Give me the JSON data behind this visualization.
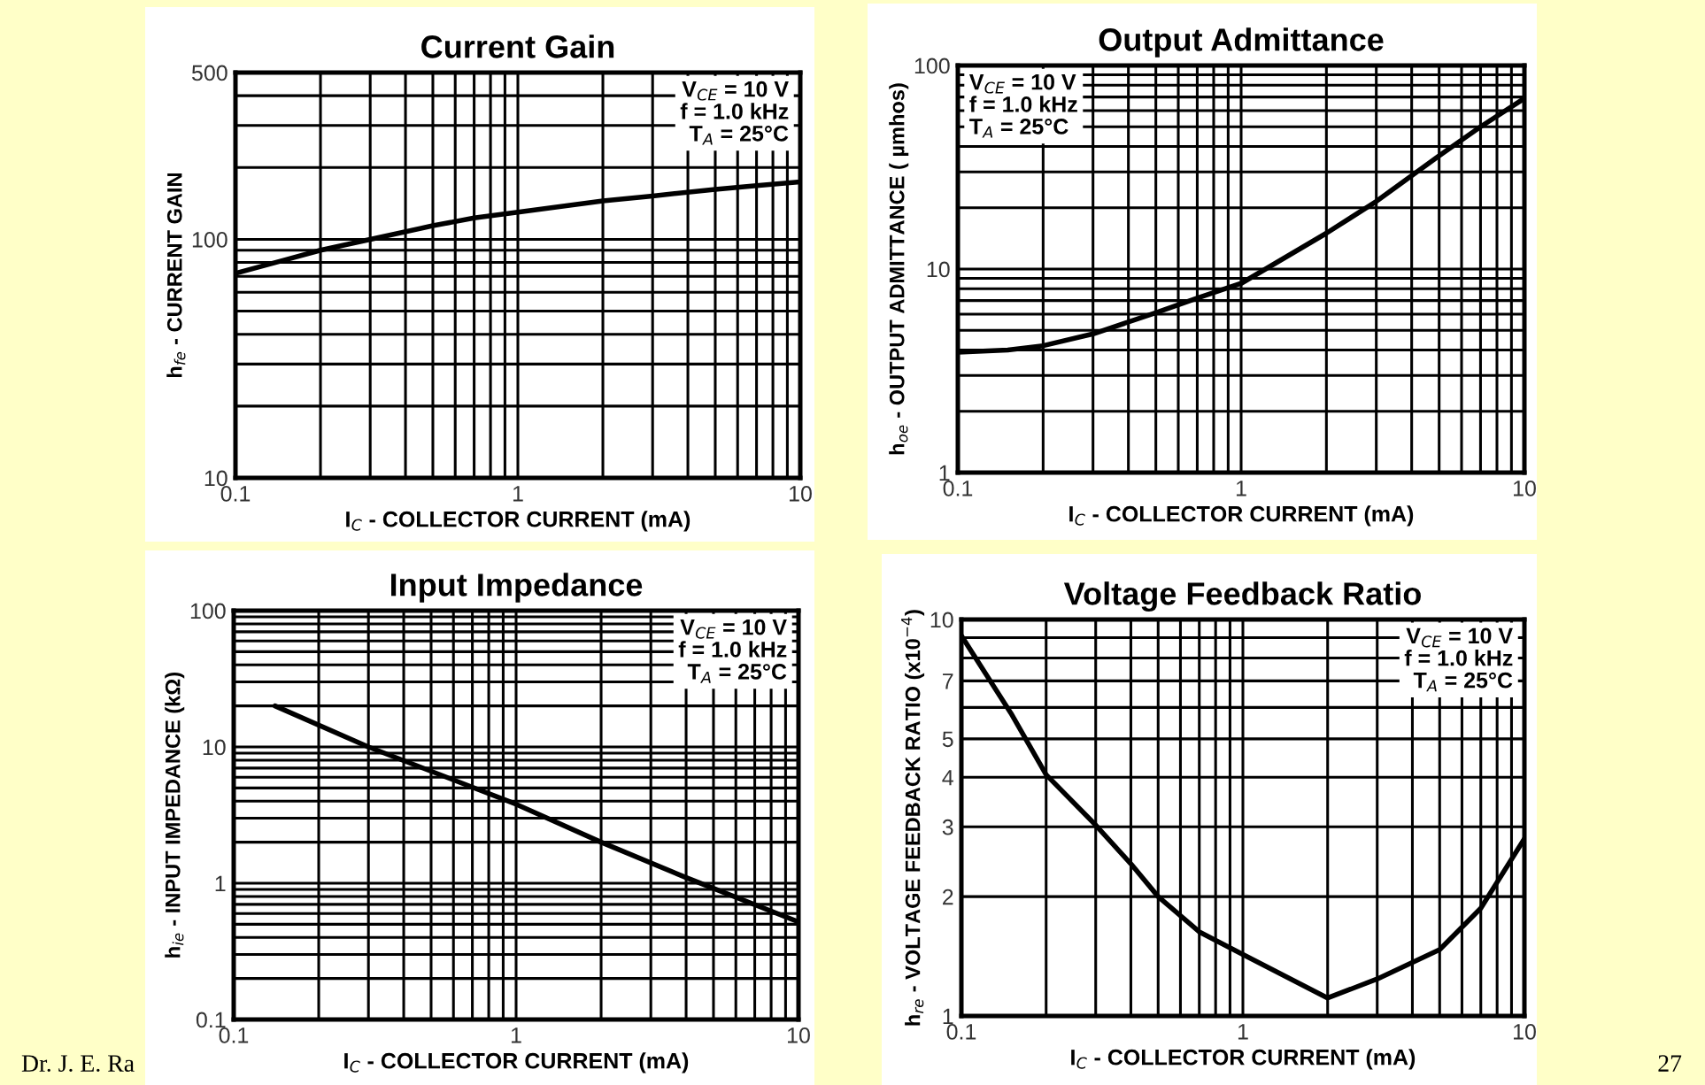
{
  "chart_data": [
    {
      "type": "line",
      "title": "Current Gain",
      "xlabel": "I$_{C}$ - COLLECTOR CURRENT (mA)",
      "ylabel": "h$_{fe}$ - CURRENT GAIN",
      "log": "xy",
      "grid": true,
      "legend": false,
      "xlim": [
        0.1,
        10
      ],
      "xticks": [
        0.1,
        1,
        10
      ],
      "ylim": [
        10,
        500
      ],
      "yticks": [
        10,
        100,
        500
      ],
      "annotations": [
        "V$_{CE}$ = 10 V\nf = 1.0 kHz\nT$_{A}$ = 25°C"
      ],
      "series": [
        {
          "color": "#000000",
          "x": [
            0.1,
            0.15,
            0.2,
            0.3,
            0.5,
            0.7,
            1,
            2,
            3,
            5,
            7,
            10
          ],
          "values": [
            72,
            82,
            90,
            100,
            114,
            123,
            130,
            145,
            152,
            162,
            168,
            174
          ]
        }
      ]
    },
    {
      "type": "line",
      "title": "Output Admittance",
      "xlabel": "I$_{C}$ - COLLECTOR CURRENT (mA)",
      "ylabel": "h$_{oe}$ - OUTPUT ADMITTANCE ( µmhos)",
      "log": "xy",
      "grid": true,
      "legend": false,
      "xlim": [
        0.1,
        10
      ],
      "xticks": [
        0.1,
        1,
        10
      ],
      "ylim": [
        1,
        100
      ],
      "yticks": [
        1,
        10,
        100
      ],
      "annotations": [
        "V$_{CE}$ = 10 V\nf = 1.0 kHz\nT$_{A}$ = 25°C"
      ],
      "series": [
        {
          "color": "#000000",
          "x": [
            0.1,
            0.15,
            0.2,
            0.3,
            0.5,
            0.7,
            1,
            2,
            3,
            5,
            7,
            10
          ],
          "values": [
            3.9,
            4.0,
            4.2,
            4.8,
            6.1,
            7.2,
            8.5,
            15,
            21.5,
            36,
            50,
            69
          ]
        }
      ]
    },
    {
      "type": "line",
      "title": "Input Impedance",
      "xlabel": "I$_{C}$ - COLLECTOR CURRENT (mA)",
      "ylabel": "h$_{ie}$ - INPUT IMPEDANCE (kΩ)",
      "log": "xy",
      "grid": true,
      "legend": false,
      "xlim": [
        0.1,
        10
      ],
      "xticks": [
        0.1,
        1,
        10
      ],
      "ylim": [
        0.1,
        100
      ],
      "yticks": [
        0.1,
        1,
        10,
        100
      ],
      "annotations": [
        "V$_{CE}$ = 10 V\nf = 1.0 kHz\nT$_{A}$ = 25°C",
        "Dr. J. E. Ra"
      ],
      "series": [
        {
          "color": "#000000",
          "x": [
            0.14,
            0.3,
            1,
            2,
            4,
            10
          ],
          "values": [
            20,
            10,
            3.8,
            2,
            1.1,
            0.52
          ]
        }
      ]
    },
    {
      "type": "line",
      "title": "Voltage Feedback Ratio",
      "xlabel": "I$_{C}$ - COLLECTOR CURRENT (mA)",
      "ylabel": "h$_{re}$ - VOLTAGE FEEDBACK RATIO (x10$^{−4}$)",
      "log": "xy",
      "grid": true,
      "legend": false,
      "xlim": [
        0.1,
        10
      ],
      "xticks": [
        0.1,
        1,
        10
      ],
      "ylim": [
        1,
        10
      ],
      "yticks": [
        1,
        2,
        3,
        4,
        5,
        7,
        10
      ],
      "annotations": [
        "V$_{CE}$ = 10 V\nf = 1.0 kHz\nT$_{A}$ = 25°C",
        "27"
      ],
      "series": [
        {
          "color": "#000000",
          "x": [
            0.1,
            0.15,
            0.2,
            0.3,
            0.4,
            0.5,
            0.7,
            1,
            2,
            3,
            5,
            7,
            10
          ],
          "values": [
            9.1,
            5.8,
            4.06,
            3.03,
            2.42,
            2.0,
            1.63,
            1.43,
            1.11,
            1.24,
            1.47,
            1.87,
            2.8
          ]
        }
      ]
    }
  ]
}
